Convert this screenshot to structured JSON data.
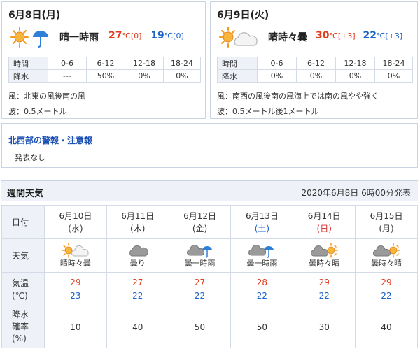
{
  "today": {
    "title": "6月8日(月)",
    "weather": "晴一時雨",
    "weather_icon": "sun-umbrella-icon",
    "high": "27",
    "high_unit": "℃",
    "high_diff": "[0]",
    "low": "19",
    "low_unit": "℃",
    "low_diff": "[0]",
    "rain_header": [
      "時間",
      "0-6",
      "6-12",
      "12-18",
      "18-24"
    ],
    "rain_values": [
      "降水",
      "---",
      "50%",
      "0%",
      "0%"
    ],
    "wind": "風：北東の風後南の風",
    "wave": "波：0.5メートル"
  },
  "tomorrow": {
    "title": "6月9日(火)",
    "weather": "晴時々曇",
    "weather_icon": "sun-cloud-icon",
    "high": "30",
    "high_unit": "℃",
    "high_diff": "[+3]",
    "low": "22",
    "low_unit": "℃",
    "low_diff": "[+3]",
    "rain_header": [
      "時間",
      "0-6",
      "6-12",
      "12-18",
      "18-24"
    ],
    "rain_values": [
      "降水",
      "0%",
      "0%",
      "0%",
      "0%"
    ],
    "wind": "風：南西の風後南の風海上では南の風やや強く",
    "wave": "波：0.5メートル後1メートル"
  },
  "warning": {
    "title": "北西部の警報・注意報",
    "body": "発表なし"
  },
  "weekly": {
    "title": "週間天気",
    "issued": "2020年6月8日 6時00分発表",
    "row_labels": {
      "date": "日付",
      "weather": "天気",
      "temp": "気温\n(℃)",
      "rain": "降水\n確率\n(%)"
    },
    "days": [
      {
        "date": "6月10日",
        "dow": "(水)",
        "dow_type": "weekday",
        "icon": "sun-cloud-icon",
        "weather": "晴時々曇",
        "high": "29",
        "low": "23",
        "rain": "10"
      },
      {
        "date": "6月11日",
        "dow": "(木)",
        "dow_type": "weekday",
        "icon": "cloud-icon",
        "weather": "曇り",
        "high": "27",
        "low": "22",
        "rain": "40"
      },
      {
        "date": "6月12日",
        "dow": "(金)",
        "dow_type": "weekday",
        "icon": "cloud-umbrella-icon",
        "weather": "曇一時雨",
        "high": "27",
        "low": "22",
        "rain": "50"
      },
      {
        "date": "6月13日",
        "dow": "(土)",
        "dow_type": "sat",
        "icon": "cloud-umbrella-icon",
        "weather": "曇一時雨",
        "high": "28",
        "low": "22",
        "rain": "50"
      },
      {
        "date": "6月14日",
        "dow": "(日)",
        "dow_type": "sun",
        "icon": "cloud-sun-icon",
        "weather": "曇時々晴",
        "high": "29",
        "low": "22",
        "rain": "30"
      },
      {
        "date": "6月15日",
        "dow": "(月)",
        "dow_type": "weekday",
        "icon": "cloud-sun-icon",
        "weather": "曇時々晴",
        "high": "29",
        "low": "22",
        "rain": "40"
      }
    ]
  },
  "colors": {
    "high": "#e23b1d",
    "low": "#1a62c7",
    "link": "#1a4fb5",
    "header_bg": "#eef2f8",
    "border": "#d5dbe6"
  }
}
